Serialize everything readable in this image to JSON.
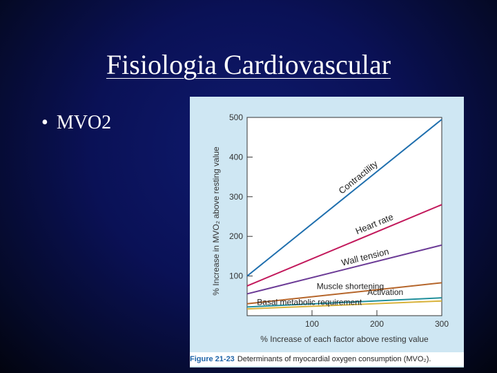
{
  "slide": {
    "title": "Fisiologia Cardiovascular",
    "bullet_mark": "•",
    "bullet": "MVO2"
  },
  "figure": {
    "caption_label": "Figure 21-23",
    "caption_text": "Determinants of myocardial oxygen consumption (MVO₂)."
  },
  "chart_data": {
    "type": "line",
    "xlabel": "% Increase of each factor above resting value",
    "ylabel": "% Increase in MVO₂ above resting value",
    "xlim": [
      0,
      300
    ],
    "ylim": [
      0,
      500
    ],
    "xticks": [
      100,
      200,
      300
    ],
    "yticks": [
      100,
      200,
      300,
      400,
      500
    ],
    "grid": false,
    "series": [
      {
        "name": "Contractility",
        "x": [
          0,
          300
        ],
        "y": [
          100,
          495
        ],
        "color": "#1f6fae"
      },
      {
        "name": "Heart rate",
        "x": [
          0,
          300
        ],
        "y": [
          75,
          280
        ],
        "color": "#c2185b"
      },
      {
        "name": "Wall tension",
        "x": [
          0,
          300
        ],
        "y": [
          55,
          178
        ],
        "color": "#6b3a96"
      },
      {
        "name": "Muscle shortening",
        "x": [
          0,
          300
        ],
        "y": [
          30,
          83
        ],
        "color": "#b5652a"
      },
      {
        "name": "Activation",
        "x": [
          0,
          300
        ],
        "y": [
          22,
          45
        ],
        "color": "#1f8f9c"
      },
      {
        "name": "Basal metabolic requirement",
        "x": [
          0,
          300
        ],
        "y": [
          17,
          37
        ],
        "color": "#d9b23a"
      }
    ]
  }
}
